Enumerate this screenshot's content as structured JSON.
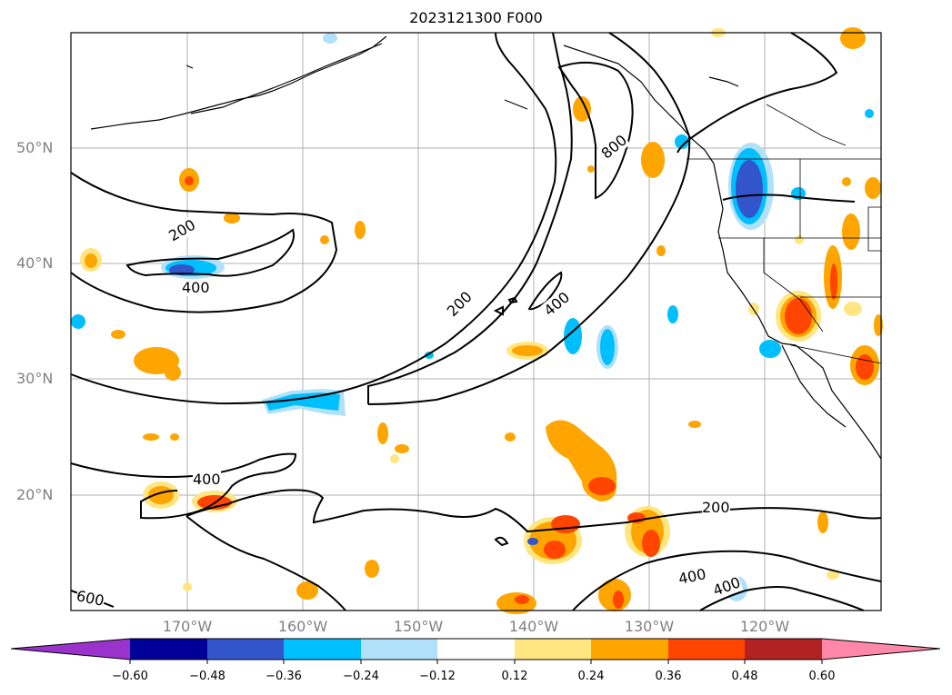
{
  "title": "2023121300 F000",
  "lat_labels": [
    "50°N",
    "40°N",
    "30°N",
    "20°N"
  ],
  "lon_labels": [
    "170°W",
    "160°W",
    "150°W",
    "140°W",
    "130°W",
    "120°W"
  ],
  "contour_labels": [
    "200",
    "400",
    "200",
    "400",
    "800",
    "400",
    "200",
    "400",
    "400",
    "600"
  ],
  "colorbar": {
    "ticks": [
      "−0.60",
      "−0.48",
      "−0.36",
      "−0.24",
      "−0.12",
      "0.12",
      "0.24",
      "0.36",
      "0.48",
      "0.60"
    ],
    "colors": [
      "#9933cc",
      "#000099",
      "#3355cc",
      "#00bfff",
      "#b0e0fa",
      "#ffffff",
      "#ffe680",
      "#ffa500",
      "#ff4500",
      "#b22222",
      "#ff88aa"
    ]
  },
  "colors": {
    "pos1": "#ffe680",
    "pos2": "#ffa500",
    "pos3": "#ff4500",
    "neg1": "#b0e0fa",
    "neg2": "#00bfff",
    "neg3": "#3355cc"
  }
}
